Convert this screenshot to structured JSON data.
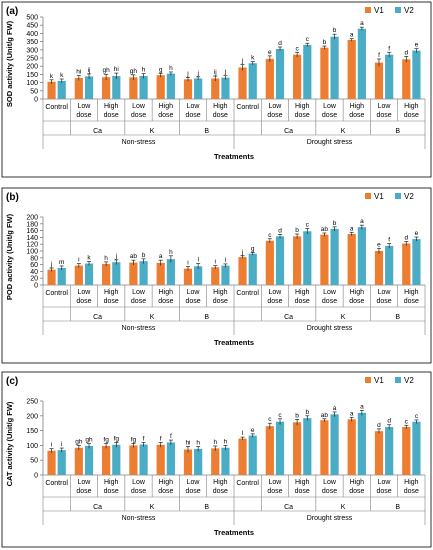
{
  "figure": {
    "colors": {
      "v1": "#ED7D31",
      "v2": "#4BACC6",
      "axis": "#808080"
    }
  },
  "chart_data": [
    {
      "type": "bar",
      "panel_label": "(a)",
      "ylabel": "SOD activity (Unit/g FW)",
      "xlabel": "Treatments",
      "ylim": [
        0,
        500
      ],
      "yticks": [
        0,
        50,
        100,
        150,
        200,
        250,
        300,
        350,
        400,
        450,
        500
      ],
      "legend": {
        "placement": "top-right",
        "entries": [
          "V1",
          "V2"
        ]
      },
      "categories": [
        "Control",
        "Low dose",
        "High dose",
        "Low dose",
        "High dose",
        "Low dose",
        "High dose",
        "Control",
        "Low dose",
        "High dose",
        "Low dose",
        "High dose",
        "Low dose",
        "High dose"
      ],
      "category_lines": [
        [
          "Control"
        ],
        [
          "Low",
          "dose"
        ],
        [
          "High",
          "dose"
        ],
        [
          "Low",
          "dose"
        ],
        [
          "High",
          "dose"
        ],
        [
          "Low",
          "dose"
        ],
        [
          "High",
          "dose"
        ],
        [
          "Control"
        ],
        [
          "Low",
          "dose"
        ],
        [
          "High",
          "dose"
        ],
        [
          "Low",
          "dose"
        ],
        [
          "High",
          "dose"
        ],
        [
          "Low",
          "dose"
        ],
        [
          "High",
          "dose"
        ]
      ],
      "subgroups": [
        {
          "label": "Ca",
          "from": 1,
          "to": 2
        },
        {
          "label": "K",
          "from": 3,
          "to": 4
        },
        {
          "label": "B",
          "from": 5,
          "to": 6
        },
        {
          "label": "Ca",
          "from": 8,
          "to": 9
        },
        {
          "label": "K",
          "from": 10,
          "to": 11
        },
        {
          "label": "B",
          "from": 12,
          "to": 13
        }
      ],
      "groups": [
        {
          "label": "Non-stress",
          "from": 0,
          "to": 6
        },
        {
          "label": "Drought stress",
          "from": 7,
          "to": 13
        }
      ],
      "series": [
        {
          "name": "V1",
          "values": [
            105,
            128,
            133,
            132,
            145,
            120,
            125,
            192,
            245,
            270,
            313,
            360,
            222,
            242
          ],
          "errors": [
            12,
            15,
            18,
            15,
            12,
            12,
            15,
            18,
            18,
            15,
            10,
            8,
            22,
            18
          ],
          "letters": [
            "k",
            "hi",
            "gh",
            "gh",
            "g",
            "j",
            "ij",
            "j",
            "e",
            "c",
            "b",
            "a",
            "f",
            "d"
          ]
        },
        {
          "name": "V2",
          "values": [
            110,
            138,
            140,
            140,
            155,
            125,
            130,
            218,
            305,
            330,
            380,
            428,
            270,
            295
          ],
          "errors": [
            12,
            15,
            18,
            15,
            10,
            10,
            12,
            10,
            12,
            10,
            15,
            10,
            15,
            12
          ],
          "letters": [
            "k",
            "ij",
            "hi",
            "h",
            "h",
            "j",
            "j",
            "k",
            "d",
            "c",
            "b",
            "a",
            "f",
            "e"
          ]
        }
      ]
    },
    {
      "type": "bar",
      "panel_label": "(b)",
      "ylabel": "POD activity (Unit/g FW)",
      "xlabel": "Treatments",
      "ylim": [
        0,
        200
      ],
      "yticks": [
        0,
        20,
        40,
        60,
        80,
        100,
        120,
        140,
        160,
        180,
        200
      ],
      "legend": {
        "placement": "top-right",
        "entries": [
          "V1",
          "V2"
        ]
      },
      "categories": [
        "Control",
        "Low dose",
        "High dose",
        "Low dose",
        "High dose",
        "Low dose",
        "High dose",
        "Control",
        "Low dose",
        "High dose",
        "Low dose",
        "High dose",
        "Low dose",
        "High dose"
      ],
      "category_lines": [
        [
          "Control"
        ],
        [
          "Low",
          "dose"
        ],
        [
          "High",
          "dose"
        ],
        [
          "Low",
          "dose"
        ],
        [
          "High",
          "dose"
        ],
        [
          "Low",
          "dose"
        ],
        [
          "High",
          "dose"
        ],
        [
          "Control"
        ],
        [
          "Low",
          "dose"
        ],
        [
          "High",
          "dose"
        ],
        [
          "Low",
          "dose"
        ],
        [
          "High",
          "dose"
        ],
        [
          "Low",
          "dose"
        ],
        [
          "High",
          "dose"
        ]
      ],
      "subgroups": [
        {
          "label": "Ca",
          "from": 1,
          "to": 2
        },
        {
          "label": "K",
          "from": 3,
          "to": 4
        },
        {
          "label": "B",
          "from": 5,
          "to": 6
        },
        {
          "label": "Ca",
          "from": 8,
          "to": 9
        },
        {
          "label": "K",
          "from": 10,
          "to": 11
        },
        {
          "label": "B",
          "from": 12,
          "to": 13
        }
      ],
      "groups": [
        {
          "label": "Non-stress",
          "from": 0,
          "to": 6
        },
        {
          "label": "Drought stress",
          "from": 7,
          "to": 13
        }
      ],
      "series": [
        {
          "name": "V1",
          "values": [
            45,
            57,
            62,
            66,
            65,
            48,
            52,
            82,
            130,
            143,
            148,
            150,
            100,
            122
          ],
          "errors": [
            5,
            6,
            6,
            7,
            8,
            6,
            5,
            4,
            6,
            7,
            5,
            5,
            8,
            6
          ],
          "letters": [
            "j",
            "i",
            "h",
            "ab",
            "a",
            "i",
            "i",
            "j",
            "c",
            "b",
            "ab",
            "a",
            "e",
            "d"
          ]
        },
        {
          "name": "V2",
          "values": [
            50,
            63,
            67,
            70,
            76,
            55,
            57,
            92,
            143,
            158,
            165,
            170,
            115,
            135
          ],
          "errors": [
            6,
            6,
            7,
            7,
            10,
            8,
            5,
            4,
            6,
            8,
            6,
            6,
            7,
            6
          ],
          "letters": [
            "m",
            "k",
            "j",
            "b",
            "h",
            "l",
            "l",
            "g",
            "d",
            "c",
            "b",
            "a",
            "f",
            "e"
          ]
        }
      ]
    },
    {
      "type": "bar",
      "panel_label": "(c)",
      "ylabel": "CAT activity (Unit/g FW)",
      "xlabel": "Treatments",
      "ylim": [
        0,
        250
      ],
      "yticks": [
        0,
        50,
        100,
        150,
        200,
        250
      ],
      "legend": {
        "placement": "top-right",
        "entries": [
          "V1",
          "V2"
        ]
      },
      "categories": [
        "Control",
        "Low dose",
        "High dose",
        "Low dose",
        "High dose",
        "Low dose",
        "High dose",
        "Control",
        "Low dose",
        "High dose",
        "Low dose",
        "High dose",
        "Low dose",
        "High dose"
      ],
      "category_lines": [
        [
          "Control"
        ],
        [
          "Low",
          "dose"
        ],
        [
          "High",
          "dose"
        ],
        [
          "Low",
          "dose"
        ],
        [
          "High",
          "dose"
        ],
        [
          "Low",
          "dose"
        ],
        [
          "High",
          "dose"
        ],
        [
          "Control"
        ],
        [
          "Low",
          "dose"
        ],
        [
          "High",
          "dose"
        ],
        [
          "Low",
          "dose"
        ],
        [
          "High",
          "dose"
        ],
        [
          "Low",
          "dose"
        ],
        [
          "High",
          "dose"
        ]
      ],
      "subgroups": [
        {
          "label": "Ca",
          "from": 1,
          "to": 2
        },
        {
          "label": "K",
          "from": 3,
          "to": 4
        },
        {
          "label": "B",
          "from": 5,
          "to": 6
        },
        {
          "label": "Ca",
          "from": 8,
          "to": 9
        },
        {
          "label": "K",
          "from": 10,
          "to": 11
        },
        {
          "label": "B",
          "from": 12,
          "to": 13
        }
      ],
      "groups": [
        {
          "label": "Non-stress",
          "from": 0,
          "to": 6
        },
        {
          "label": "Drought stress",
          "from": 7,
          "to": 13
        }
      ],
      "series": [
        {
          "name": "V1",
          "values": [
            82,
            92,
            98,
            100,
            102,
            86,
            90,
            123,
            165,
            178,
            185,
            188,
            148,
            162
          ],
          "errors": [
            7,
            8,
            8,
            7,
            8,
            10,
            8,
            5,
            10,
            10,
            5,
            7,
            8,
            6
          ],
          "letters": [
            "i",
            "gh",
            "fg",
            "fg",
            "f",
            "hi",
            "h",
            "l",
            "c",
            "b",
            "ab",
            "a",
            "d",
            "c"
          ]
        },
        {
          "name": "V2",
          "values": [
            84,
            98,
            102,
            103,
            110,
            88,
            92,
            133,
            180,
            192,
            205,
            210,
            162,
            180
          ],
          "errors": [
            7,
            8,
            8,
            7,
            8,
            8,
            8,
            6,
            10,
            8,
            8,
            8,
            8,
            6
          ],
          "letters": [
            "i",
            "gh",
            "fg",
            "f",
            "f",
            "h",
            "h",
            "e",
            "c",
            "b",
            "a",
            "a",
            "d",
            "c"
          ]
        }
      ]
    }
  ]
}
